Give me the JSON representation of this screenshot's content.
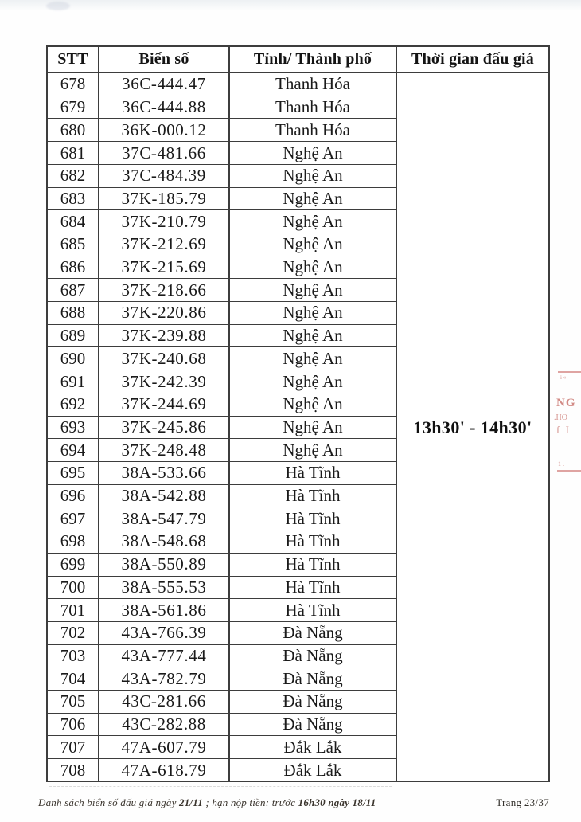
{
  "table": {
    "headers": [
      "STT",
      "Biển số",
      "Tỉnh/ Thành phố",
      "Thời gian đấu giá"
    ],
    "auction_time": "13h30' - 14h30'",
    "rows": [
      [
        "678",
        "36C-444.47",
        "Thanh Hóa"
      ],
      [
        "679",
        "36C-444.88",
        "Thanh Hóa"
      ],
      [
        "680",
        "36K-000.12",
        "Thanh Hóa"
      ],
      [
        "681",
        "37C-481.66",
        "Nghệ An"
      ],
      [
        "682",
        "37C-484.39",
        "Nghệ An"
      ],
      [
        "683",
        "37K-185.79",
        "Nghệ An"
      ],
      [
        "684",
        "37K-210.79",
        "Nghệ An"
      ],
      [
        "685",
        "37K-212.69",
        "Nghệ An"
      ],
      [
        "686",
        "37K-215.69",
        "Nghệ An"
      ],
      [
        "687",
        "37K-218.66",
        "Nghệ An"
      ],
      [
        "688",
        "37K-220.86",
        "Nghệ An"
      ],
      [
        "689",
        "37K-239.88",
        "Nghệ An"
      ],
      [
        "690",
        "37K-240.68",
        "Nghệ An"
      ],
      [
        "691",
        "37K-242.39",
        "Nghệ An"
      ],
      [
        "692",
        "37K-244.69",
        "Nghệ An"
      ],
      [
        "693",
        "37K-245.86",
        "Nghệ An"
      ],
      [
        "694",
        "37K-248.48",
        "Nghệ An"
      ],
      [
        "695",
        "38A-533.66",
        "Hà Tĩnh"
      ],
      [
        "696",
        "38A-542.88",
        "Hà Tĩnh"
      ],
      [
        "697",
        "38A-547.79",
        "Hà Tĩnh"
      ],
      [
        "698",
        "38A-548.68",
        "Hà Tĩnh"
      ],
      [
        "699",
        "38A-550.89",
        "Hà Tĩnh"
      ],
      [
        "700",
        "38A-555.53",
        "Hà Tĩnh"
      ],
      [
        "701",
        "38A-561.86",
        "Hà Tĩnh"
      ],
      [
        "702",
        "43A-766.39",
        "Đà Nẵng"
      ],
      [
        "703",
        "43A-777.44",
        "Đà Nẵng"
      ],
      [
        "704",
        "43A-782.79",
        "Đà Nẵng"
      ],
      [
        "705",
        "43C-281.66",
        "Đà Nẵng"
      ],
      [
        "706",
        "43C-282.88",
        "Đà Nẵng"
      ],
      [
        "707",
        "47A-607.79",
        "Đắk Lắk"
      ],
      [
        "708",
        "47A-618.79",
        "Đắk Lắk"
      ]
    ]
  },
  "footer": {
    "left_parts": [
      "Danh sách biển số đấu giá ngày ",
      "21/11",
      " ; hạn nộp tiền: trước ",
      "16h30 ngày 18/11"
    ],
    "page_number": "Trang 23/37"
  },
  "stamp_fragments": {
    "tiny_top": "i «",
    "text_1": "NG",
    "text_2": ".HO",
    "text_3": "f I",
    "tiny_bottom": "1 .",
    "color": "#c4655e"
  },
  "colors": {
    "table_border": "#3d3d3d",
    "text": "#1a1a1a",
    "footer_text": "#3b352e",
    "stamp_red": "#c4655e"
  }
}
